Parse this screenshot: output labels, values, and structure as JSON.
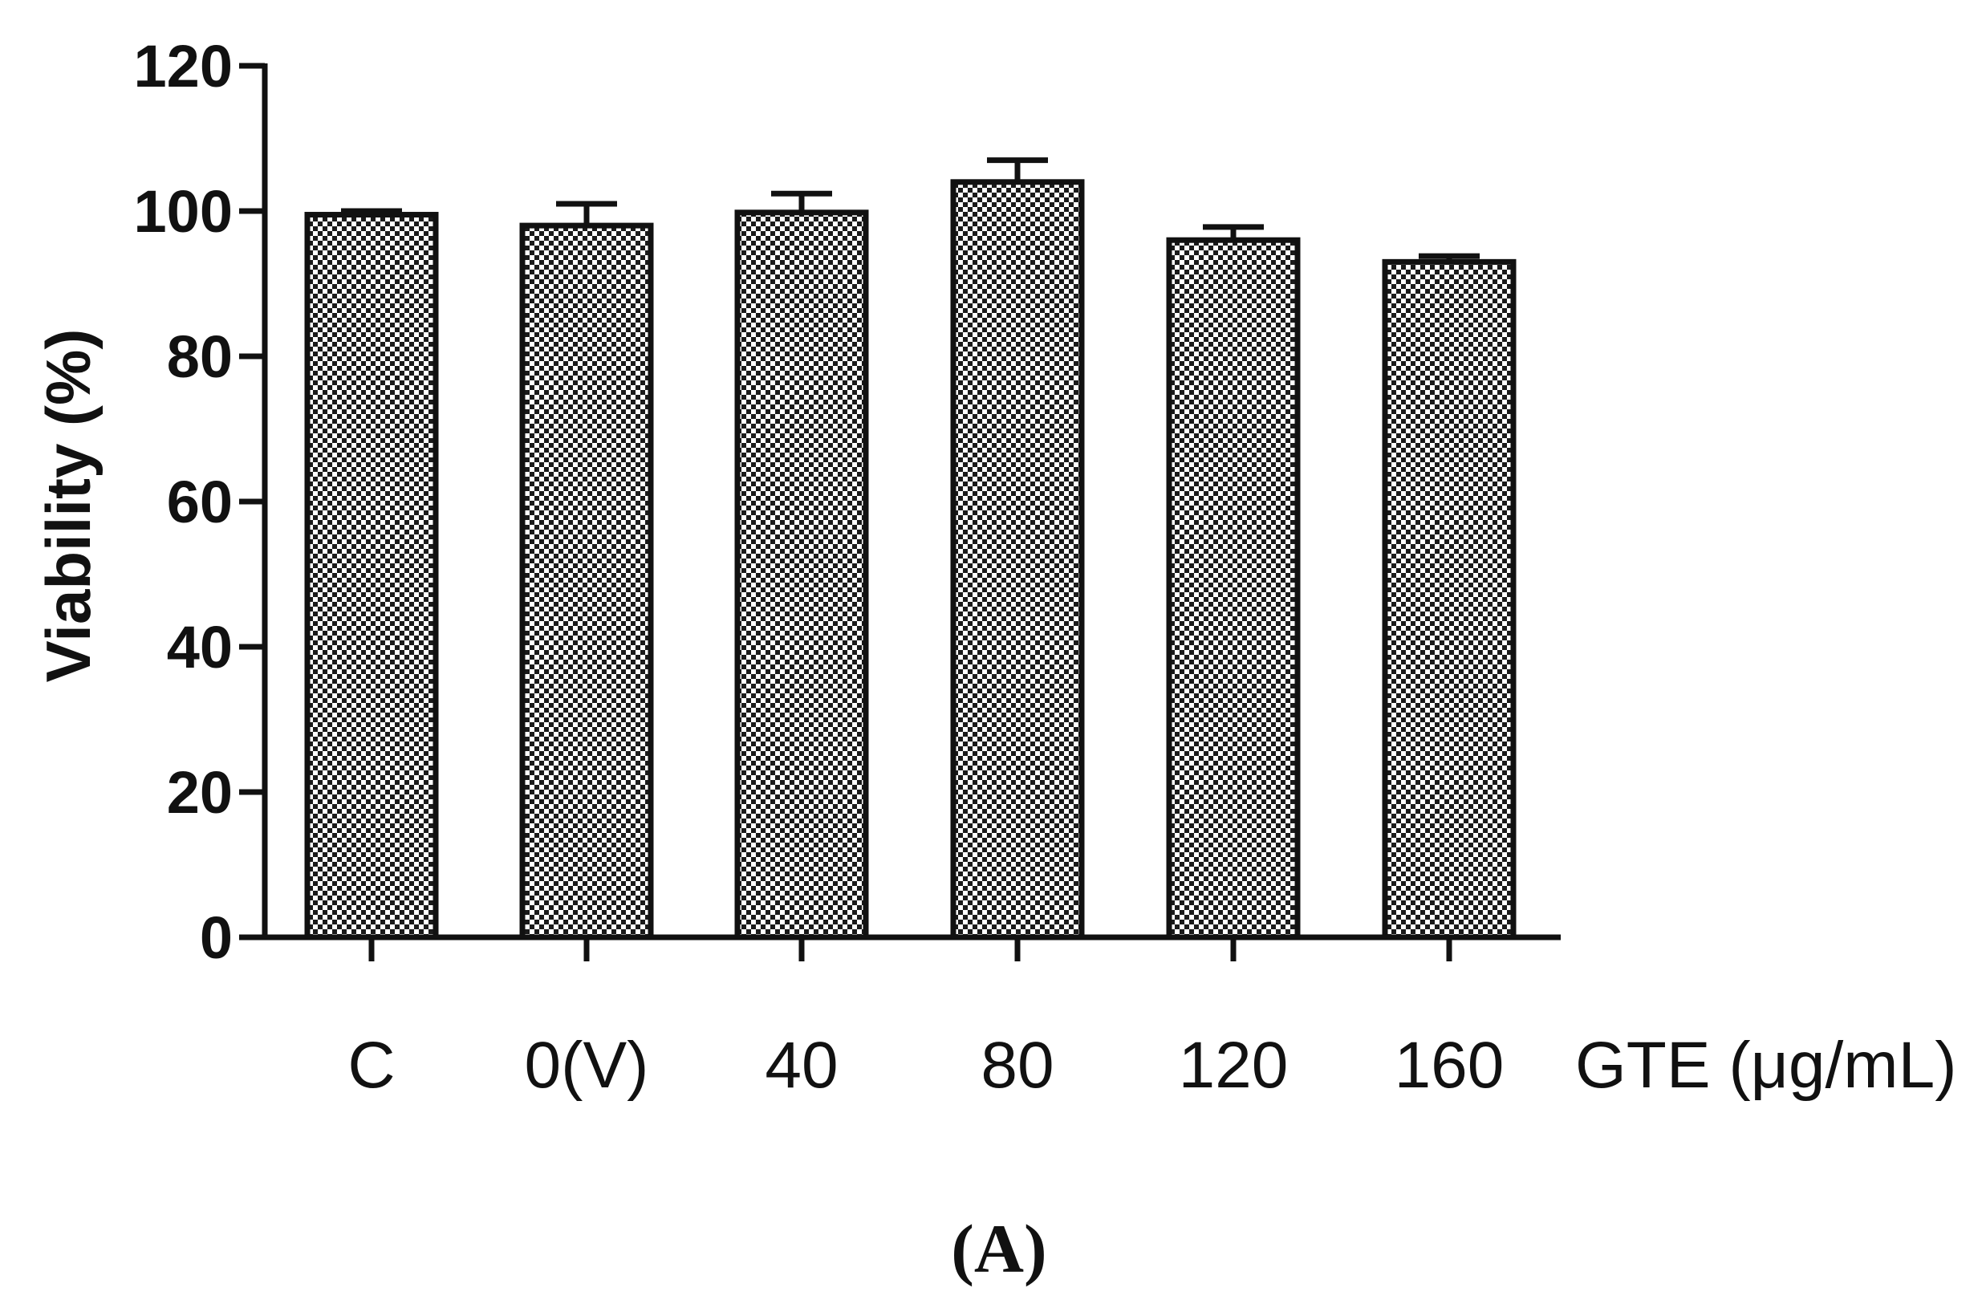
{
  "chart_data": {
    "type": "bar",
    "title": "",
    "categories": [
      "C",
      "0(V)",
      "40",
      "80",
      "120",
      "160"
    ],
    "values": [
      99.5,
      98,
      99.8,
      104,
      96,
      93
    ],
    "error": [
      0.5,
      3,
      2.6,
      3,
      1.8,
      0.8
    ],
    "xlabel": "GTE (μg/mL)",
    "ylabel": "Viability (%)",
    "ylim": [
      0,
      120
    ],
    "yticks": [
      "0",
      "20",
      "40",
      "60",
      "80",
      "100",
      "120"
    ],
    "grid": false,
    "legend": "none",
    "bar_fill": "checkered",
    "colors": {
      "bar_pattern_dark": "#1a1a1a",
      "bar_pattern_light": "#ffffff",
      "axis": "#111111"
    }
  },
  "panel_label": "(A)"
}
